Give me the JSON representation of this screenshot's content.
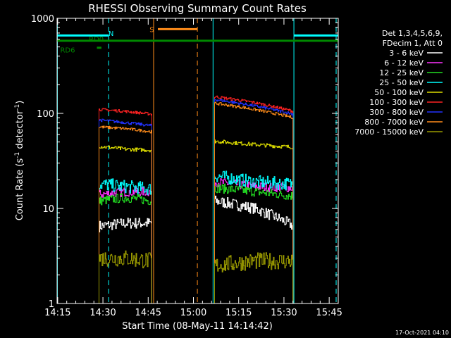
{
  "chart_data": {
    "type": "line",
    "title": "RHESSI Observing Summary Count Rates",
    "xlabel": "Start Time (08-May-11 14:14:42)",
    "ylabel_main": "Count Rate (s",
    "ylabel_sup1": "-1",
    "ylabel_mid": " detector",
    "ylabel_sup2": "-1",
    "ylabel_end": ")",
    "y_scale": "log",
    "ylim": [
      1,
      1000
    ],
    "xlim_minutes": [
      14.8,
      108.0
    ],
    "x_ticks": [
      {
        "t": 15,
        "label": "14:15"
      },
      {
        "t": 30,
        "label": "14:30"
      },
      {
        "t": 45,
        "label": "14:45"
      },
      {
        "t": 60,
        "label": "15:00"
      },
      {
        "t": 75,
        "label": "15:15"
      },
      {
        "t": 90,
        "label": "15:30"
      },
      {
        "t": 105,
        "label": "15:45"
      }
    ],
    "y_ticks": [
      {
        "v": 1,
        "label": "1"
      },
      {
        "v": 10,
        "label": "10"
      },
      {
        "v": 100,
        "label": "100"
      },
      {
        "v": 1000,
        "label": "1000"
      }
    ],
    "legend_header": [
      "Det 1,3,4,5,6,9,",
      "FDecim 1, Att 0"
    ],
    "series": [
      {
        "name": "3 - 6 keV",
        "color": "#ffffff",
        "seg1": [
          6.5,
          7.0,
          7.0
        ],
        "seg2": [
          12.0,
          10.0,
          6.5
        ],
        "noise": 0.06
      },
      {
        "name": "6 - 12 keV",
        "color": "#ff33ff",
        "seg1": [
          14.0,
          15.0,
          15.0
        ],
        "seg2": [
          19.0,
          17.0,
          16.5
        ],
        "noise": 0.05
      },
      {
        "name": "12 - 25 keV",
        "color": "#22dd22",
        "seg1": [
          12.0,
          13.0,
          12.0
        ],
        "seg2": [
          16.5,
          15.0,
          13.5
        ],
        "noise": 0.05
      },
      {
        "name": "25 - 50 keV",
        "color": "#00ffff",
        "seg1": [
          18.0,
          17.0,
          16.0
        ],
        "seg2": [
          22.0,
          19.0,
          18.0
        ],
        "noise": 0.07
      },
      {
        "name": "50 - 100 keV",
        "color": "#dddd00",
        "seg1": [
          45.0,
          42.0,
          41.0
        ],
        "seg2": [
          51.0,
          47.0,
          44.0
        ],
        "noise": 0.02
      },
      {
        "name": "100 - 300 keV",
        "color": "#ff2222",
        "seg1": [
          110.0,
          105.0,
          98.0
        ],
        "seg2": [
          150.0,
          130.0,
          105.0
        ],
        "noise": 0.015
      },
      {
        "name": "300 - 800 keV",
        "color": "#2233ff",
        "seg1": [
          85.0,
          80.0,
          74.0
        ],
        "seg2": [
          140.0,
          120.0,
          98.0
        ],
        "noise": 0.015
      },
      {
        "name": "800 - 7000 keV",
        "color": "#ff8c1a",
        "seg1": [
          72.0,
          69.0,
          64.0
        ],
        "seg2": [
          128.0,
          110.0,
          90.0
        ],
        "noise": 0.015
      },
      {
        "name": "7000 - 15000 keV",
        "color": "#999900",
        "seg1": [
          3.0,
          3.0,
          2.8
        ],
        "seg2": [
          2.5,
          2.8,
          2.8
        ],
        "noise": 0.09
      }
    ],
    "data_segments": [
      {
        "start": 28.7,
        "end": 46.3
      },
      {
        "start": 67.0,
        "end": 93.2
      }
    ],
    "vlines": [
      {
        "t": 14.9,
        "color": "#00ffff",
        "dash": false
      },
      {
        "t": 31.9,
        "color": "#00ffff",
        "dash": true
      },
      {
        "t": 46.8,
        "color": "#ff8c1a",
        "dash": false
      },
      {
        "t": 61.3,
        "color": "#ff8c1a",
        "dash": true
      },
      {
        "t": 66.5,
        "color": "#00ffff",
        "dash": false
      },
      {
        "t": 93.3,
        "color": "#00ffff",
        "dash": false
      },
      {
        "t": 107.3,
        "color": "#00ffff",
        "dash": true
      }
    ],
    "bars": [
      {
        "label": "N",
        "color": "#00ffff",
        "t0": 14.8,
        "t1": 31.9,
        "v": 660,
        "label_t": 32.7,
        "label_v": 700
      },
      {
        "label": "N",
        "color": "#00ffff",
        "t0": 93.3,
        "t1": 108.0,
        "v": 660,
        "label_t": null,
        "label_v": null
      },
      {
        "label": "S",
        "color": "#ff8c1a",
        "t0": 48.2,
        "t1": 61.3,
        "v": 770,
        "label_t": 46.2,
        "label_v": 770
      },
      {
        "label": "RD0",
        "color": "#008800",
        "t0": 14.8,
        "t1": 108.0,
        "v": 580,
        "label_t": 27.8,
        "label_v": 610
      },
      {
        "label": "RD6",
        "color": "#008800",
        "t0": 28.0,
        "t1": 29.5,
        "v": 490,
        "label_t": 18.3,
        "label_v": 470
      }
    ],
    "footer_date": "17-Oct-2021 04:10"
  }
}
